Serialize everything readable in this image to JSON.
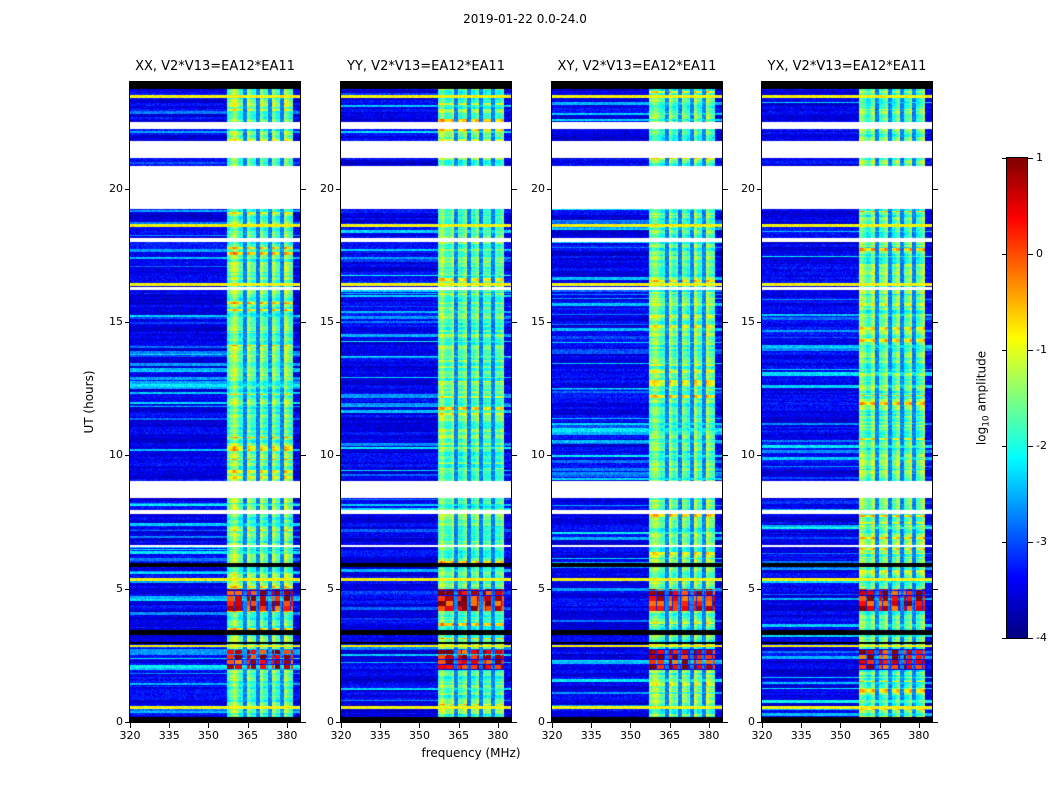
{
  "figure": {
    "title": "2019-01-22 0.0-24.0",
    "xlabel": "frequency (MHz)",
    "ylabel": "UT (hours)"
  },
  "colorbar": {
    "label_prefix": "log",
    "label_sub": "10",
    "label_suffix": " amplitude",
    "ticks": [
      1,
      0,
      -1,
      -2,
      -3,
      -4
    ],
    "range": [
      -4,
      1
    ],
    "colormap": "jet"
  },
  "chart_data": {
    "type": "heatmap",
    "title": "2019-01-22 0.0-24.0",
    "xlabel": "frequency (MHz)",
    "ylabel": "UT (hours)",
    "xlim": [
      320,
      385
    ],
    "ylim": [
      0,
      24
    ],
    "xticks": [
      320,
      335,
      350,
      365,
      380
    ],
    "yticks": [
      0,
      5,
      10,
      15,
      20
    ],
    "color_range": [
      -4,
      1
    ],
    "colormap": "jet",
    "background_level": -3.55,
    "panels": [
      {
        "pol": "XX",
        "label": "XX, V2*V13=EA12*EA11"
      },
      {
        "pol": "YY",
        "label": "YY, V2*V13=EA12*EA11"
      },
      {
        "pol": "XY",
        "label": "XY, V2*V13=EA12*EA11"
      },
      {
        "pol": "YX",
        "label": "YX, V2*V13=EA12*EA11"
      }
    ],
    "features": {
      "rfi_band_mhz": [
        357,
        382.5
      ],
      "rfi_band_level": -1.7,
      "band_notch_mhz": [
        364,
        368.8,
        373.5,
        378.2
      ],
      "data_gaps_hours": [
        [
          19.25,
          20.85
        ],
        [
          21.15,
          21.8
        ],
        [
          22.25,
          22.5
        ],
        [
          18.0,
          18.15
        ],
        [
          16.2,
          16.3
        ],
        [
          8.4,
          9.05
        ],
        [
          7.8,
          7.95
        ],
        [
          6.55,
          6.62
        ]
      ],
      "black_rows_hours": [
        [
          23.72,
          24.0
        ],
        [
          5.82,
          5.97
        ],
        [
          3.28,
          3.46
        ],
        [
          2.93,
          3.0
        ],
        [
          0.0,
          0.18
        ]
      ],
      "strong_rfi_blocks_hours": [
        [
          4.15,
          5.0
        ],
        [
          1.95,
          2.72
        ]
      ],
      "strong_rfi_level": 0.8,
      "bright_rows_hours": [
        23.45,
        18.62,
        16.4,
        5.35,
        2.85,
        0.55
      ]
    }
  }
}
